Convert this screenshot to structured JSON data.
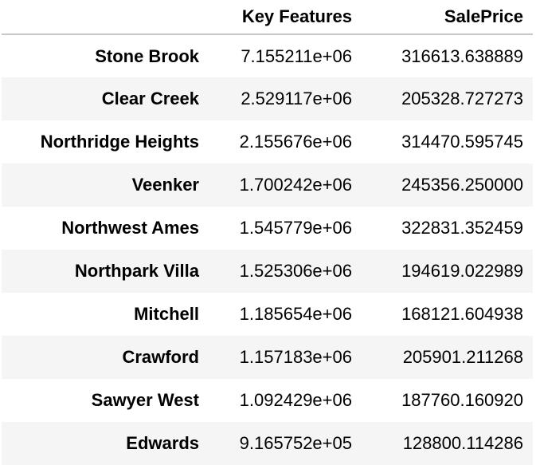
{
  "table": {
    "index_header": "",
    "columns": [
      "Key Features",
      "SalePrice"
    ],
    "rows": [
      {
        "label": "Stone Brook",
        "values": [
          "7.155211e+06",
          "316613.638889"
        ]
      },
      {
        "label": "Clear Creek",
        "values": [
          "2.529117e+06",
          "205328.727273"
        ]
      },
      {
        "label": "Northridge Heights",
        "values": [
          "2.155676e+06",
          "314470.595745"
        ]
      },
      {
        "label": "Veenker",
        "values": [
          "1.700242e+06",
          "245356.250000"
        ]
      },
      {
        "label": "Northwest Ames",
        "values": [
          "1.545779e+06",
          "322831.352459"
        ]
      },
      {
        "label": "Northpark Villa",
        "values": [
          "1.525306e+06",
          "194619.022989"
        ]
      },
      {
        "label": "Mitchell",
        "values": [
          "1.185654e+06",
          "168121.604938"
        ]
      },
      {
        "label": "Crawford",
        "values": [
          "1.157183e+06",
          "205901.211268"
        ]
      },
      {
        "label": "Sawyer West",
        "values": [
          "1.092429e+06",
          "187760.160920"
        ]
      },
      {
        "label": "Edwards",
        "values": [
          "9.165752e+05",
          "128800.114286"
        ]
      }
    ]
  }
}
